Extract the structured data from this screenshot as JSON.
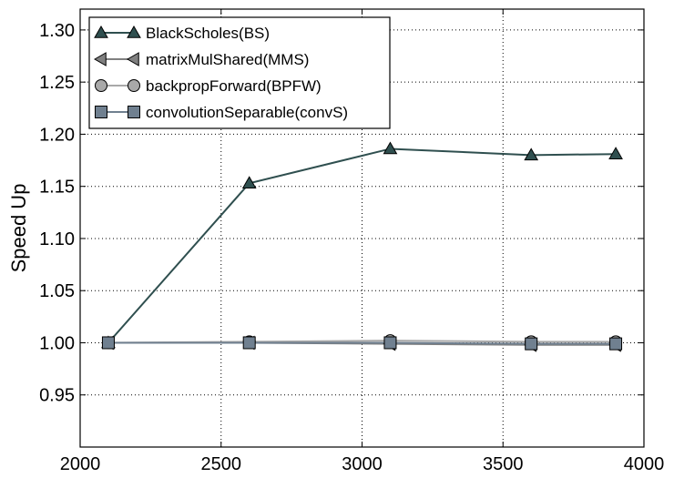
{
  "chart_data": {
    "type": "line",
    "title": "",
    "xlabel": "",
    "ylabel": "Speed Up",
    "xlim": [
      2000,
      4000
    ],
    "ylim": [
      0.9,
      1.32
    ],
    "xticks": [
      2000,
      2500,
      3000,
      3500,
      4000
    ],
    "yticks": [
      0.95,
      1.0,
      1.05,
      1.1,
      1.15,
      1.2,
      1.25,
      1.3
    ],
    "xtick_labels": [
      "2000",
      "2500",
      "3000",
      "3500",
      "4000"
    ],
    "ytick_labels": [
      "0.95",
      "1.00",
      "1.05",
      "1.10",
      "1.15",
      "1.20",
      "1.25",
      "1.30"
    ],
    "grid": true,
    "legend_position": "top-left",
    "x": [
      2100,
      2600,
      3100,
      3600,
      3900
    ],
    "series": [
      {
        "name": "BlackScholes(BS)",
        "values": [
          1.0,
          1.153,
          1.186,
          1.18,
          1.181
        ],
        "color": "#2f4f4f",
        "marker": "triangle-up"
      },
      {
        "name": "matrixMulShared(MMS)",
        "values": [
          1.0,
          1.0,
          0.999,
          0.998,
          0.998
        ],
        "color": "#808080",
        "marker": "triangle-left"
      },
      {
        "name": "backpropForward(BPFW)",
        "values": [
          1.0,
          1.001,
          1.002,
          1.001,
          1.001
        ],
        "color": "#a9a9a9",
        "marker": "circle"
      },
      {
        "name": "convolutionSeparable(convS)",
        "values": [
          1.0,
          1.0,
          1.0,
          0.999,
          0.999
        ],
        "color": "#708090",
        "marker": "square"
      }
    ]
  }
}
